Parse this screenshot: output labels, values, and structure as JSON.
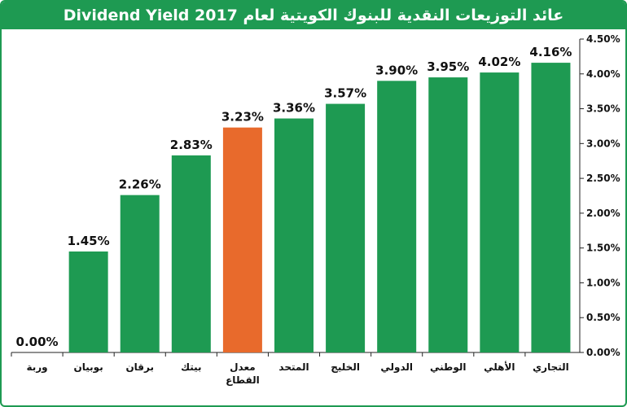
{
  "chart_data": {
    "type": "bar",
    "title": "عائد التوزيعات النقدية للبنوك الكويتية لعام Dividend Yield 2017",
    "categories": [
      "وربة",
      "بوبيان",
      "برقان",
      "بيتك",
      "معدل القطاع",
      "المتحد",
      "الخليج",
      "الدولي",
      "الوطني",
      "الأهلي",
      "التجاري"
    ],
    "values": [
      0.0,
      1.45,
      2.26,
      2.83,
      3.23,
      3.36,
      3.57,
      3.9,
      3.95,
      4.02,
      4.16
    ],
    "value_labels": [
      "0.00%",
      "1.45%",
      "2.26%",
      "2.83%",
      "3.23%",
      "3.36%",
      "3.57%",
      "3.90%",
      "3.95%",
      "4.02%",
      "4.16%"
    ],
    "highlight_index": 4,
    "ylim": [
      0,
      4.5
    ],
    "ytick_labels": [
      "0.00%",
      "0.50%",
      "1.00%",
      "1.50%",
      "2.00%",
      "2.50%",
      "3.00%",
      "3.50%",
      "4.00%",
      "4.50%"
    ],
    "yaxis_side": "right",
    "xlabel": "",
    "ylabel": "",
    "grid": false,
    "colors": {
      "bar": "#1e9a52",
      "highlight": "#e86a2c",
      "title_bg": "#1e9a52",
      "title_text": "#ffffff"
    }
  }
}
